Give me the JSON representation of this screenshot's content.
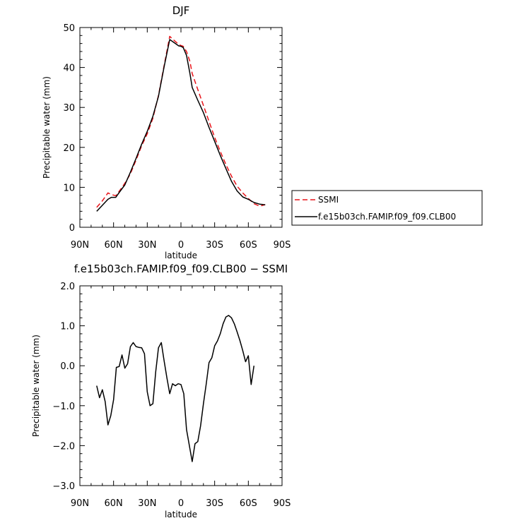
{
  "chart_data": [
    {
      "type": "line",
      "title": "DJF",
      "xlabel": "latitude",
      "ylabel": "Precipitable water (mm)",
      "xlim": [
        90,
        -90
      ],
      "ylim": [
        0,
        50
      ],
      "x_ticks": [
        {
          "value": 90,
          "label": "90N"
        },
        {
          "value": 60,
          "label": "60N"
        },
        {
          "value": 30,
          "label": "30N"
        },
        {
          "value": 0,
          "label": "0"
        },
        {
          "value": -30,
          "label": "30S"
        },
        {
          "value": -60,
          "label": "60S"
        },
        {
          "value": -90,
          "label": "90S"
        }
      ],
      "y_ticks": [
        {
          "value": 0,
          "label": "0"
        },
        {
          "value": 10,
          "label": "10"
        },
        {
          "value": 20,
          "label": "20"
        },
        {
          "value": 30,
          "label": "30"
        },
        {
          "value": 40,
          "label": "40"
        },
        {
          "value": 50,
          "label": "50"
        }
      ],
      "legend_position": "right",
      "series": [
        {
          "name": "SSMI",
          "color": "#e8141a",
          "dash": "dashed",
          "x": [
            75,
            70,
            65,
            62,
            58,
            55,
            50,
            45,
            40,
            35,
            30,
            25,
            20,
            15,
            10,
            5,
            2,
            0,
            -2,
            -5,
            -8,
            -10,
            -15,
            -20,
            -25,
            -30,
            -35,
            -40,
            -45,
            -50,
            -55,
            -60,
            -65,
            -70,
            -73,
            -75
          ],
          "y": [
            5.0,
            6.6,
            8.6,
            8.2,
            7.9,
            9.0,
            11.0,
            13.4,
            16.8,
            20.4,
            23.4,
            27.3,
            33.0,
            40.5,
            47.8,
            46.5,
            45.8,
            45.5,
            45.3,
            44.0,
            41.5,
            38.5,
            34.5,
            30.5,
            26.5,
            22.5,
            19.0,
            15.7,
            12.8,
            10.3,
            8.6,
            7.2,
            5.9,
            5.3,
            5.5,
            5.7
          ]
        },
        {
          "name": "f.e15b03ch.FAMIP.f09_f09.CLB00",
          "color": "#000000",
          "dash": "solid",
          "x": [
            75,
            70,
            65,
            62,
            58,
            55,
            50,
            45,
            40,
            35,
            30,
            25,
            20,
            15,
            10,
            5,
            2,
            0,
            -2,
            -5,
            -8,
            -10,
            -15,
            -20,
            -25,
            -30,
            -35,
            -40,
            -45,
            -50,
            -55,
            -60,
            -65,
            -70,
            -73,
            -75
          ],
          "y": [
            4.0,
            5.5,
            7.0,
            7.5,
            7.5,
            8.7,
            10.6,
            13.8,
            17.2,
            20.8,
            24.0,
            27.8,
            32.8,
            40.2,
            47.0,
            46.0,
            45.4,
            45.3,
            45.0,
            43.0,
            38.5,
            35.0,
            31.8,
            28.7,
            25.0,
            21.5,
            18.0,
            14.7,
            11.5,
            9.1,
            7.6,
            7.0,
            6.2,
            5.8,
            5.7,
            5.6
          ]
        }
      ]
    },
    {
      "type": "line",
      "title": "f.e15b03ch.FAMIP.f09_f09.CLB00 − SSMI",
      "xlabel": "latitude",
      "ylabel": "Precipitable water (mm)",
      "xlim": [
        90,
        -90
      ],
      "ylim": [
        -3,
        2
      ],
      "x_ticks": [
        {
          "value": 90,
          "label": "90N"
        },
        {
          "value": 60,
          "label": "60N"
        },
        {
          "value": 30,
          "label": "30N"
        },
        {
          "value": 0,
          "label": "0"
        },
        {
          "value": -30,
          "label": "30S"
        },
        {
          "value": -60,
          "label": "60S"
        },
        {
          "value": -90,
          "label": "90S"
        }
      ],
      "y_ticks": [
        {
          "value": 2,
          "label": "2.0"
        },
        {
          "value": 1,
          "label": "1.0"
        },
        {
          "value": 0,
          "label": "0.0"
        },
        {
          "value": -1,
          "label": "−1.0"
        },
        {
          "value": -2,
          "label": "−2.0"
        },
        {
          "value": -3,
          "label": "−3.0"
        }
      ],
      "series": [
        {
          "color": "#000000",
          "dash": "solid",
          "x": [
            75,
            72.5,
            70,
            67.5,
            65,
            62.5,
            60,
            57.5,
            55,
            52.5,
            50,
            47.5,
            45,
            42.5,
            40,
            37.5,
            35,
            32.5,
            30,
            27.5,
            25,
            22.5,
            20,
            17.5,
            15,
            12.5,
            10,
            7.5,
            5,
            2.5,
            0,
            -2.5,
            -5,
            -7.5,
            -10,
            -12.5,
            -15,
            -17.5,
            -20,
            -22.5,
            -25,
            -27.5,
            -30,
            -32.5,
            -35,
            -37.5,
            -40,
            -42.5,
            -45,
            -47.5,
            -50,
            -52.5,
            -55,
            -57.5,
            -60,
            -62.5,
            -65,
            -67.5,
            -70,
            -72.5,
            -75
          ],
          "y": [
            -0.5,
            -0.8,
            -0.6,
            -0.9,
            -1.48,
            -1.25,
            -0.85,
            -0.04,
            -0.02,
            0.27,
            -0.06,
            0.05,
            0.48,
            0.58,
            0.48,
            0.46,
            0.45,
            0.3,
            -0.65,
            -1.0,
            -0.95,
            -0.15,
            0.45,
            0.58,
            0.12,
            -0.3,
            -0.7,
            -0.45,
            -0.5,
            -0.45,
            -0.47,
            -0.7,
            -1.6,
            -2.0,
            -2.4,
            -1.95,
            -1.9,
            -1.5,
            -0.95,
            -0.45,
            0.08,
            0.2,
            0.5,
            0.62,
            0.8,
            1.05,
            1.22,
            1.26,
            1.2,
            1.05,
            0.85,
            0.63,
            0.38,
            0.1,
            0.25,
            -0.47,
            0.0,
            null,
            null,
            null,
            null
          ]
        }
      ]
    }
  ]
}
